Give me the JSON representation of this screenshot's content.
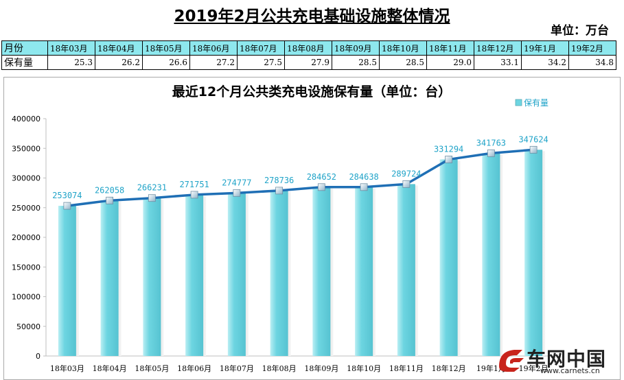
{
  "page_title": "2019年2月公共充电基础设施整体情况",
  "unit_label": "单位：万台",
  "summary_table": {
    "header_label": "月份",
    "row_label": "保有量",
    "months": [
      "18年03月",
      "18年04月",
      "18年05月",
      "18年06月",
      "18年07月",
      "18年08月",
      "18年09月",
      "18年10月",
      "18年11月",
      "18年12月",
      "19年1月",
      "19年2月"
    ],
    "values": [
      "25.3",
      "26.2",
      "26.6",
      "27.2",
      "27.5",
      "27.9",
      "28.5",
      "28.5",
      "29.0",
      "33.1",
      "34.2",
      "34.8"
    ]
  },
  "chart_data": {
    "type": "bar",
    "title": "最近12个月公共类充电设施保有量（单位：台）",
    "legend": {
      "label": "保有量",
      "position": "top-right"
    },
    "categories": [
      "18年03月",
      "18年04月",
      "18年05月",
      "18年06月",
      "18年07月",
      "18年08月",
      "18年09月",
      "18年10月",
      "18年11月",
      "18年12月",
      "19年1月",
      "19年2月"
    ],
    "series": [
      {
        "name": "保有量",
        "values": [
          253074,
          262058,
          266231,
          271751,
          274777,
          278736,
          284652,
          284638,
          289724,
          331294,
          341763,
          347624
        ]
      }
    ],
    "line_overlay": true,
    "data_labels": [
      "253074",
      "262058",
      "266231",
      "271751",
      "274777",
      "278736",
      "284652",
      "284638",
      "289724",
      "331294",
      "341763",
      "347624"
    ],
    "ylim": [
      0,
      400000
    ],
    "y_ticks": [
      "0",
      "50000",
      "100000",
      "150000",
      "200000",
      "250000",
      "300000",
      "350000",
      "400000"
    ],
    "grid": false,
    "colors": {
      "bar": "#6dd5e1",
      "line": "#1f6fb5",
      "label": "#1fa3c8"
    }
  },
  "watermark": {
    "text": "车网中国",
    "url": "www.carnets.cn"
  }
}
